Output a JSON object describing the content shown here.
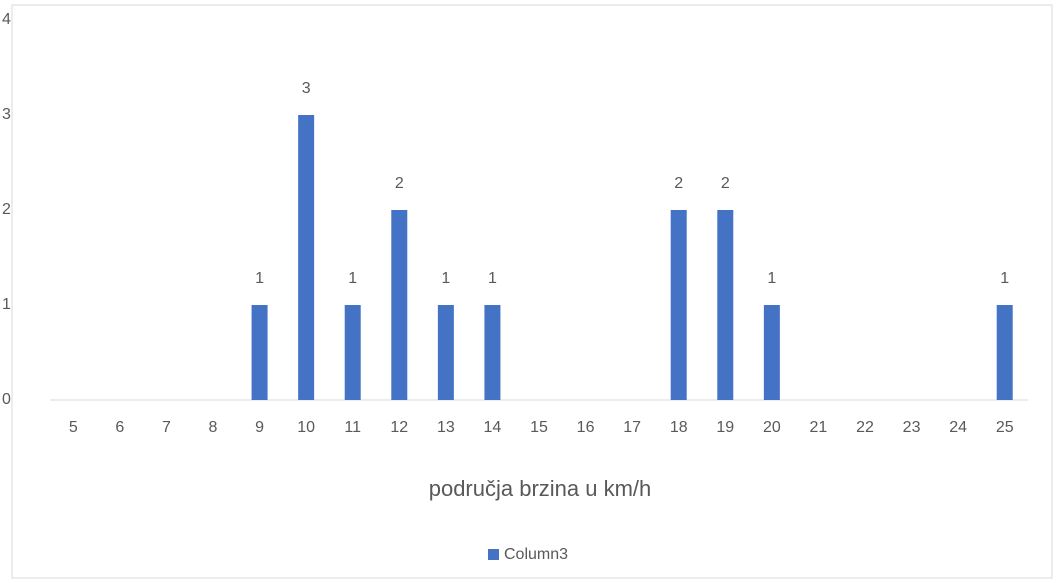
{
  "chart_data": {
    "type": "bar",
    "x_label": "područja brzina u km/h",
    "categories": [
      "5",
      "6",
      "7",
      "8",
      "9",
      "10",
      "11",
      "12",
      "13",
      "14",
      "15",
      "16",
      "17",
      "18",
      "19",
      "20",
      "21",
      "22",
      "23",
      "24",
      "25"
    ],
    "series": [
      {
        "name": "Column3",
        "color": "#4472c4",
        "values": [
          0,
          0,
          0,
          0,
          1,
          3,
          1,
          2,
          1,
          1,
          0,
          0,
          0,
          2,
          2,
          1,
          0,
          0,
          0,
          0,
          1
        ]
      }
    ],
    "ylim": [
      0,
      4
    ],
    "yticks": [
      0,
      1,
      2,
      3,
      4
    ],
    "grid": false,
    "legend": "bottom",
    "data_labels": true
  }
}
